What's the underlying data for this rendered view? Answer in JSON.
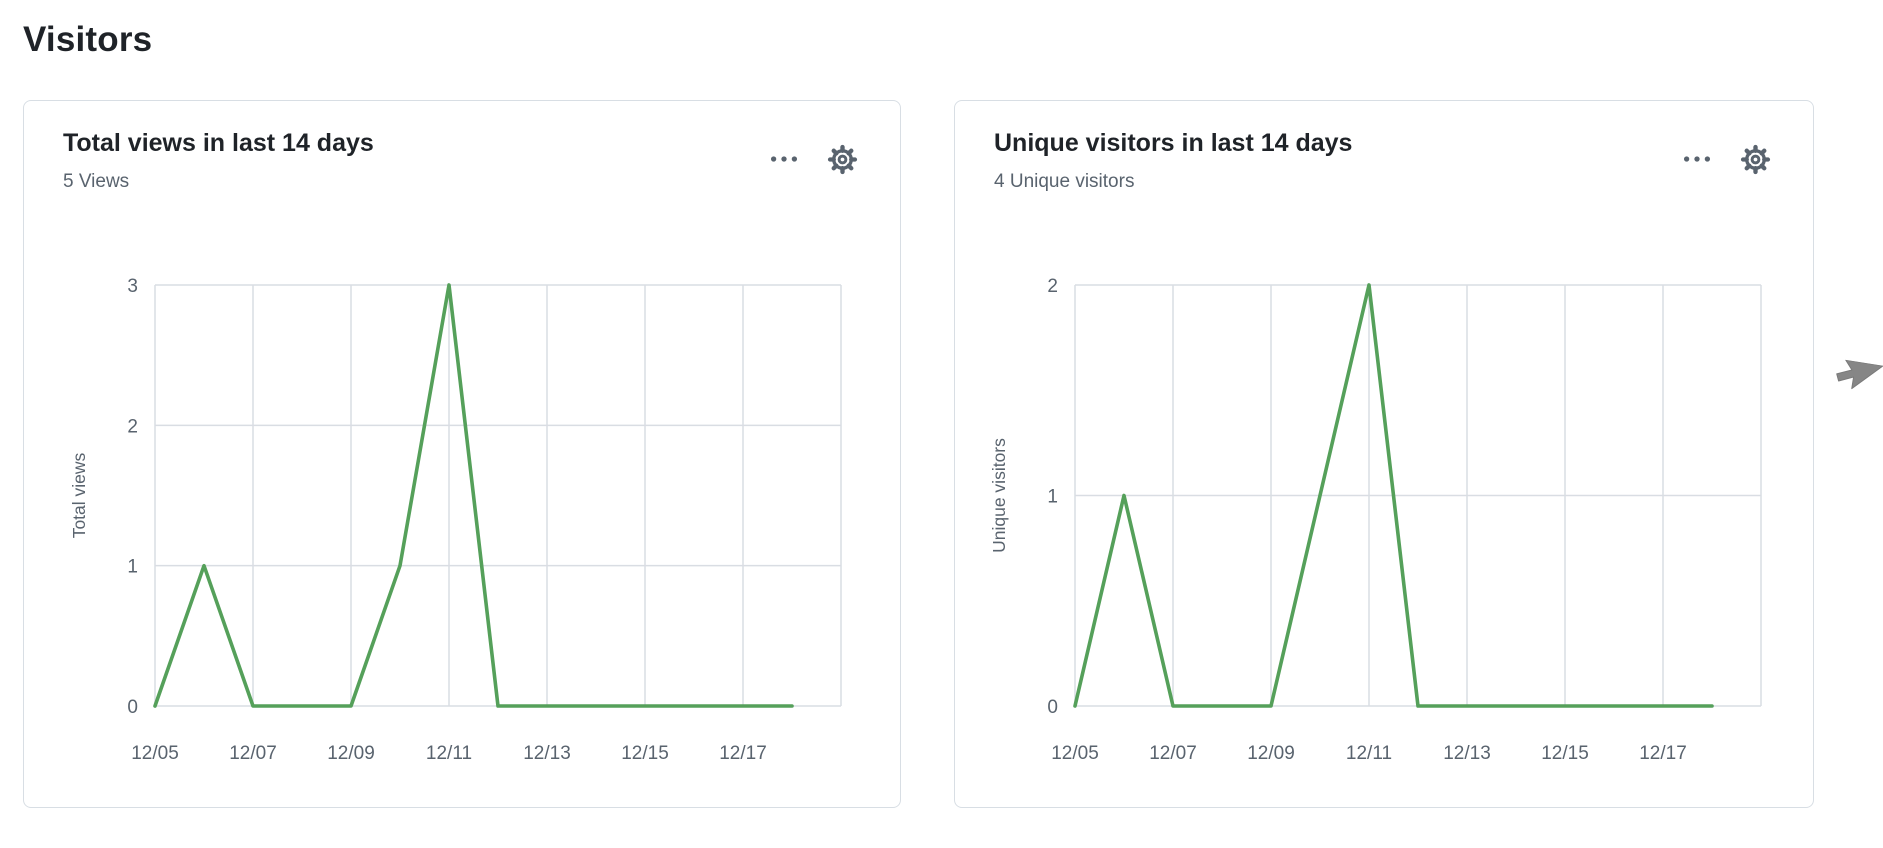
{
  "page": {
    "title": "Visitors"
  },
  "colors": {
    "line_green": "#55a05a",
    "grid": "#d9dde3",
    "text_muted": "#59636e",
    "text_default": "#1f2328",
    "card_border": "#d8dee4",
    "icon": "#59636e",
    "cursor_gray": "#868686"
  },
  "cards": [
    {
      "title": "Total views in last 14 days",
      "subtitle": "5 Views",
      "icons": [
        "kebab-horizontal-icon",
        "gear-icon"
      ]
    },
    {
      "title": "Unique visitors in last 14 days",
      "subtitle": "4 Unique visitors",
      "icons": [
        "kebab-horizontal-icon",
        "gear-icon"
      ]
    }
  ],
  "chart_data": [
    {
      "type": "line",
      "title": "Total views in last 14 days",
      "categories": [
        "12/05",
        "12/06",
        "12/07",
        "12/08",
        "12/09",
        "12/10",
        "12/11",
        "12/12",
        "12/13",
        "12/14",
        "12/15",
        "12/16",
        "12/17",
        "12/18"
      ],
      "values": [
        0,
        1,
        0,
        0,
        0,
        1,
        3,
        0,
        0,
        0,
        0,
        0,
        0,
        0
      ],
      "xlabel": "",
      "ylabel": "Total views",
      "ylim": [
        0,
        3
      ],
      "yticks": [
        0,
        1,
        2,
        3
      ],
      "xticks": [
        "12/05",
        "12/07",
        "12/09",
        "12/11",
        "12/13",
        "12/15",
        "12/17"
      ],
      "grid": true,
      "legend": "none"
    },
    {
      "type": "line",
      "title": "Unique visitors in last 14 days",
      "categories": [
        "12/05",
        "12/06",
        "12/07",
        "12/08",
        "12/09",
        "12/10",
        "12/11",
        "12/12",
        "12/13",
        "12/14",
        "12/15",
        "12/16",
        "12/17",
        "12/18"
      ],
      "values": [
        0,
        1,
        0,
        0,
        0,
        1,
        2,
        0,
        0,
        0,
        0,
        0,
        0,
        0
      ],
      "xlabel": "",
      "ylabel": "Unique visitors",
      "ylim": [
        0,
        2
      ],
      "yticks": [
        0,
        1,
        2
      ],
      "xticks": [
        "12/05",
        "12/07",
        "12/09",
        "12/11",
        "12/13",
        "12/15",
        "12/17"
      ],
      "grid": true,
      "legend": "none"
    }
  ],
  "cursor": {
    "icon": "mouse-pointer-icon"
  }
}
